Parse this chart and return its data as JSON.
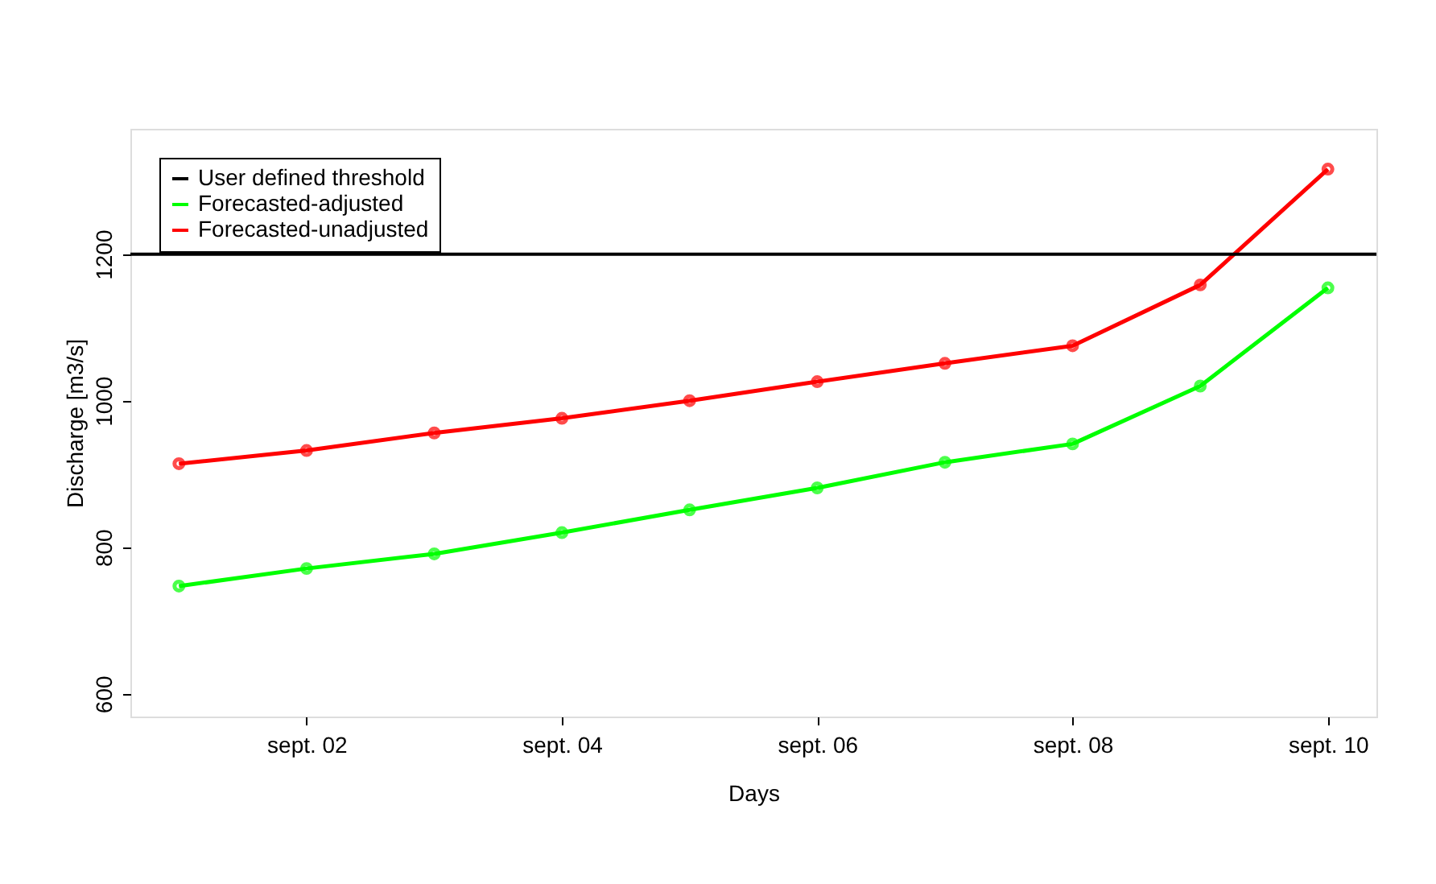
{
  "chart_data": {
    "type": "line",
    "xlabel": "Days",
    "ylabel": "Discharge [m3/s]",
    "categories": [
      null,
      "sept. 02",
      null,
      "sept. 04",
      null,
      "sept. 06",
      null,
      "sept. 08",
      null,
      "sept. 10"
    ],
    "ylim": [
      569,
      1371
    ],
    "yticks": [
      600,
      800,
      {
        "value": 1000,
        "label": "1000"
      },
      {
        "value": 1200,
        "label": "1200"
      }
    ],
    "series": [
      {
        "name": "Forecasted-adjusted",
        "color": "#00ff00",
        "values": [
          747,
          771,
          791,
          820,
          851,
          881,
          916,
          941,
          1020,
          1154
        ]
      },
      {
        "name": "Forecasted-unadjusted",
        "color": "#ff0000",
        "values": [
          914,
          932,
          956,
          976,
          1000,
          1026,
          1051,
          1075,
          1158,
          1316
        ]
      }
    ],
    "ref_lines": [
      {
        "axis": "y",
        "value": 1200,
        "label": "User defined threshold",
        "color": "#000000"
      }
    ],
    "marker": "circle",
    "line_style": "solid",
    "grid": false,
    "legend": "top left"
  }
}
